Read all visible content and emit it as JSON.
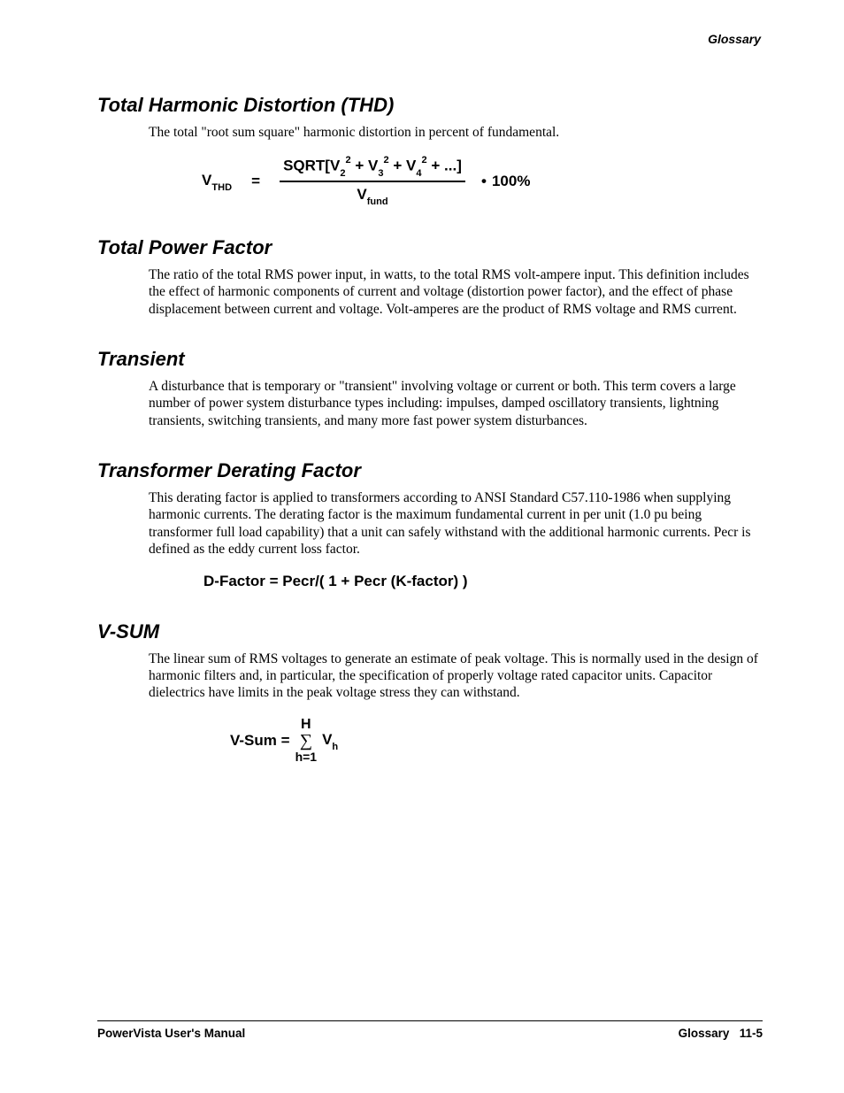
{
  "header": {
    "section_label": "Glossary"
  },
  "sections": {
    "thd": {
      "heading": "Total Harmonic Distortion (THD)",
      "body": "The total \"root sum square\" harmonic distortion in percent of fundamental.",
      "formula": {
        "lhs_prefix": "V",
        "lhs_sub": "THD",
        "equals": "=",
        "num_prefix": "SQRT[V",
        "num_s1_sub": "2",
        "num_s1_sup": "2",
        "plus": " + V",
        "num_s2_sub": "3",
        "num_s2_sup": "2",
        "num_s3_sub": "4",
        "num_s3_sup": "2",
        "num_suffix": " + ...]",
        "den_prefix": "V",
        "den_sub": "fund",
        "bullet": "•",
        "tail": "100%"
      }
    },
    "tpf": {
      "heading": "Total Power Factor",
      "body": "The ratio of the total RMS power input, in watts, to the total RMS volt-ampere input.  This definition includes the effect of harmonic components of current and voltage (distortion power factor), and the effect of phase displacement between current and voltage.  Volt-amperes are the product of RMS voltage and RMS current."
    },
    "transient": {
      "heading": "Transient",
      "body": "A disturbance that is temporary or \"transient\" involving voltage or current or both.  This term covers a large number of power system disturbance types including:  impulses, damped oscillatory transients, lightning transients, switching transients, and many more fast power system disturbances."
    },
    "tdf": {
      "heading": "Transformer Derating Factor",
      "body": "This derating factor is applied to transformers according to ANSI Standard C57.110-1986 when supplying harmonic currents.  The derating factor is the maximum fundamental current in per unit (1.0 pu being transformer full load capability) that a unit can safely withstand with the additional harmonic currents.  Pecr is defined as the eddy current loss factor.",
      "formula_text": "D-Factor = Pecr/( 1 + Pecr (K-factor) )"
    },
    "vsum": {
      "heading": "V-SUM",
      "body": "The linear sum of RMS voltages to generate an estimate of peak voltage.  This is normally used in the design of harmonic filters and, in particular, the specification of properly voltage rated capacitor units.  Capacitor dielectrics have limits in the peak voltage stress they can withstand.",
      "formula": {
        "lhs": "V-Sum = ",
        "upper": "H",
        "sigma": "∑",
        "lower": "h=1",
        "rhs_prefix": " V",
        "rhs_sub": "h"
      }
    }
  },
  "footer": {
    "left": "PowerVista User's Manual",
    "right_label": "Glossary",
    "right_page": "11-5"
  },
  "colors": {
    "text": "#000000",
    "background": "#ffffff",
    "rule": "#000000"
  },
  "typography": {
    "heading_family": "Arial",
    "heading_size_pt": 16,
    "heading_weight": "bold",
    "heading_style": "italic",
    "body_family": "Times New Roman",
    "body_size_pt": 12,
    "formula_family": "Arial",
    "formula_size_pt": 13,
    "formula_weight": "bold",
    "header_size_pt": 10,
    "footer_size_pt": 10
  }
}
